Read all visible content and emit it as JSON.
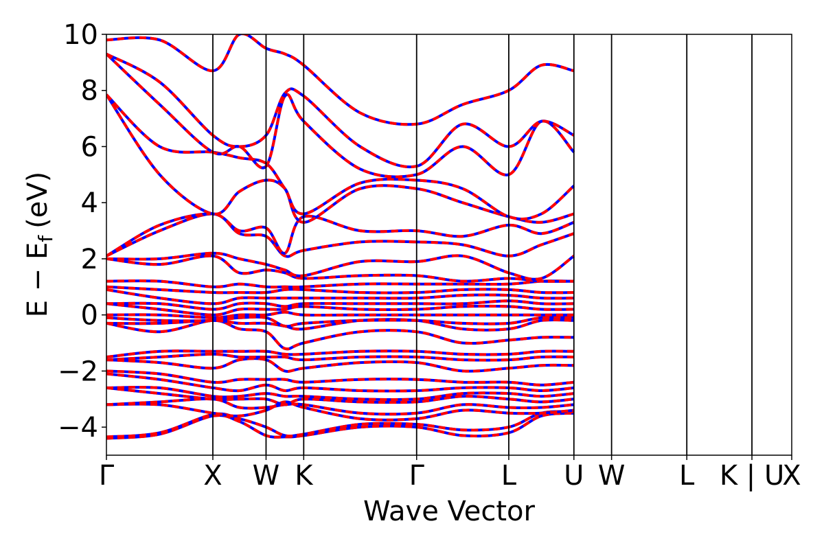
{
  "chart_data": {
    "type": "line",
    "title": "",
    "xlabel": "Wave Vector",
    "ylabel_main": "E − E",
    "ylabel_sub": "f",
    "ylabel_unit": "(eV)",
    "ylim": [
      -5,
      10
    ],
    "xlim": [
      0,
      6.44
    ],
    "yticks": [
      -4,
      -2,
      0,
      2,
      4,
      6,
      8,
      10
    ],
    "ytick_labels": [
      "−4",
      "−2",
      "0",
      "2",
      "4",
      "6",
      "8",
      "10"
    ],
    "kpoints": [
      {
        "label": "Γ",
        "x": 0.0
      },
      {
        "label": "X",
        "x": 1.0
      },
      {
        "label": "W",
        "x": 1.5
      },
      {
        "label": "K",
        "x": 1.854
      },
      {
        "label": "Γ",
        "x": 2.915
      },
      {
        "label": "L",
        "x": 3.781
      },
      {
        "label": "U",
        "x": 4.393
      },
      {
        "label": "W",
        "x": 4.747
      },
      {
        "label": "L",
        "x": 5.454
      },
      {
        "label": "K | U",
        "x": 6.066
      },
      {
        "label": "X",
        "x": 6.44
      }
    ],
    "colors": {
      "series_a": "#0000ff",
      "series_b": "#ff0000",
      "vlines": "#000000"
    },
    "bands": [
      [
        -4.4,
        -4.25,
        -3.6,
        -3.8,
        -4.3,
        -4.35,
        -4.3,
        -4.0,
        -4.0,
        -4.3,
        -4.2,
        -3.6,
        -3.5
      ],
      [
        -4.35,
        -4.2,
        -3.55,
        -3.7,
        -4.0,
        -4.3,
        -4.25,
        -3.9,
        -3.9,
        -4.1,
        -4.0,
        -3.5,
        -3.45
      ],
      [
        -3.2,
        -3.2,
        -3.5,
        -3.6,
        -3.4,
        -3.1,
        -3.3,
        -3.7,
        -3.7,
        -3.4,
        -3.5,
        -3.5,
        -3.4
      ],
      [
        -3.2,
        -3.1,
        -3.0,
        -3.3,
        -3.3,
        -3.2,
        -3.2,
        -3.5,
        -3.5,
        -3.2,
        -3.3,
        -3.3,
        -3.2
      ],
      [
        -2.6,
        -2.8,
        -3.0,
        -3.0,
        -3.0,
        -3.2,
        -3.0,
        -3.1,
        -3.1,
        -2.9,
        -3.0,
        -3.1,
        -3.0
      ],
      [
        -2.6,
        -2.6,
        -2.9,
        -2.9,
        -2.8,
        -2.9,
        -2.9,
        -3.0,
        -3.0,
        -2.8,
        -2.8,
        -2.9,
        -2.8
      ],
      [
        -2.1,
        -2.3,
        -2.6,
        -2.7,
        -2.5,
        -2.7,
        -2.6,
        -2.7,
        -2.7,
        -2.6,
        -2.6,
        -2.7,
        -2.6
      ],
      [
        -2.0,
        -2.1,
        -2.4,
        -2.3,
        -2.3,
        -2.3,
        -2.4,
        -2.3,
        -2.3,
        -2.4,
        -2.4,
        -2.5,
        -2.4
      ],
      [
        -1.6,
        -1.7,
        -1.9,
        -1.6,
        -1.6,
        -2.0,
        -1.9,
        -1.7,
        -1.7,
        -2.0,
        -1.9,
        -1.8,
        -1.8
      ],
      [
        -1.6,
        -1.5,
        -1.4,
        -1.5,
        -1.5,
        -1.5,
        -1.6,
        -1.5,
        -1.5,
        -1.6,
        -1.6,
        -1.5,
        -1.5
      ],
      [
        -1.5,
        -1.3,
        -1.3,
        -1.3,
        -1.3,
        -1.4,
        -1.4,
        -1.3,
        -1.3,
        -1.4,
        -1.4,
        -1.3,
        -1.3
      ],
      [
        -0.3,
        -0.6,
        -0.2,
        -0.5,
        -0.6,
        -1.2,
        -1.0,
        -0.6,
        -0.6,
        -1.0,
        -0.9,
        -0.8,
        -0.8
      ],
      [
        -0.3,
        -0.3,
        -0.2,
        -0.3,
        -0.3,
        -0.4,
        -0.5,
        -0.2,
        -0.2,
        -0.5,
        -0.5,
        -0.2,
        -0.2
      ],
      [
        -0.1,
        -0.2,
        -0.2,
        -0.1,
        -0.1,
        -0.4,
        -0.3,
        -0.2,
        -0.2,
        -0.3,
        -0.3,
        -0.1,
        -0.1
      ],
      [
        0.0,
        0.0,
        -0.1,
        0.0,
        0.0,
        0.1,
        0.0,
        0.0,
        0.0,
        0.0,
        0.0,
        0.0,
        0.0
      ],
      [
        0.4,
        0.2,
        0.0,
        0.2,
        0.2,
        0.2,
        0.3,
        0.2,
        0.2,
        0.3,
        0.3,
        0.2,
        0.2
      ],
      [
        0.4,
        0.4,
        0.2,
        0.4,
        0.4,
        0.3,
        0.4,
        0.4,
        0.4,
        0.4,
        0.5,
        0.4,
        0.4
      ],
      [
        0.9,
        0.6,
        0.4,
        0.6,
        0.6,
        0.6,
        0.6,
        0.6,
        0.6,
        0.7,
        0.7,
        0.6,
        0.6
      ],
      [
        1.0,
        0.9,
        0.8,
        0.8,
        0.8,
        0.9,
        0.9,
        0.8,
        0.8,
        0.9,
        0.9,
        0.8,
        0.8
      ],
      [
        1.2,
        1.2,
        1.0,
        1.1,
        1.0,
        1.0,
        1.0,
        1.1,
        1.1,
        1.1,
        1.1,
        1.2,
        1.2
      ],
      [
        2.0,
        1.8,
        2.1,
        1.5,
        1.6,
        1.5,
        1.3,
        1.4,
        1.4,
        1.2,
        1.3,
        1.2,
        1.2
      ],
      [
        2.0,
        2.0,
        2.2,
        2.0,
        1.8,
        1.6,
        1.4,
        1.9,
        1.9,
        2.1,
        1.5,
        1.3,
        2.1
      ],
      [
        2.1,
        3.0,
        3.6,
        2.9,
        2.8,
        2.1,
        2.3,
        2.6,
        2.6,
        2.5,
        2.1,
        2.5,
        2.9
      ],
      [
        2.1,
        3.2,
        3.6,
        3.0,
        3.1,
        2.2,
        3.5,
        3.0,
        3.0,
        2.8,
        3.2,
        2.9,
        3.3
      ],
      [
        7.85,
        5.0,
        3.6,
        4.4,
        4.8,
        4.5,
        3.3,
        4.5,
        4.5,
        4.0,
        3.5,
        3.3,
        3.6
      ],
      [
        7.85,
        6.0,
        5.8,
        5.6,
        5.4,
        4.5,
        3.6,
        4.7,
        4.8,
        4.5,
        3.5,
        3.6,
        4.6
      ],
      [
        9.3,
        7.5,
        5.8,
        6.0,
        5.3,
        7.8,
        6.9,
        5.2,
        5.0,
        6.0,
        5.0,
        6.9,
        5.8
      ],
      [
        9.3,
        8.3,
        6.4,
        6.0,
        6.4,
        7.9,
        7.8,
        6.0,
        5.3,
        6.8,
        6.0,
        6.9,
        6.4
      ],
      [
        9.8,
        9.8,
        8.7,
        10.0,
        9.5,
        9.3,
        8.9,
        7.2,
        6.8,
        7.5,
        8.0,
        8.9,
        8.7
      ]
    ]
  }
}
